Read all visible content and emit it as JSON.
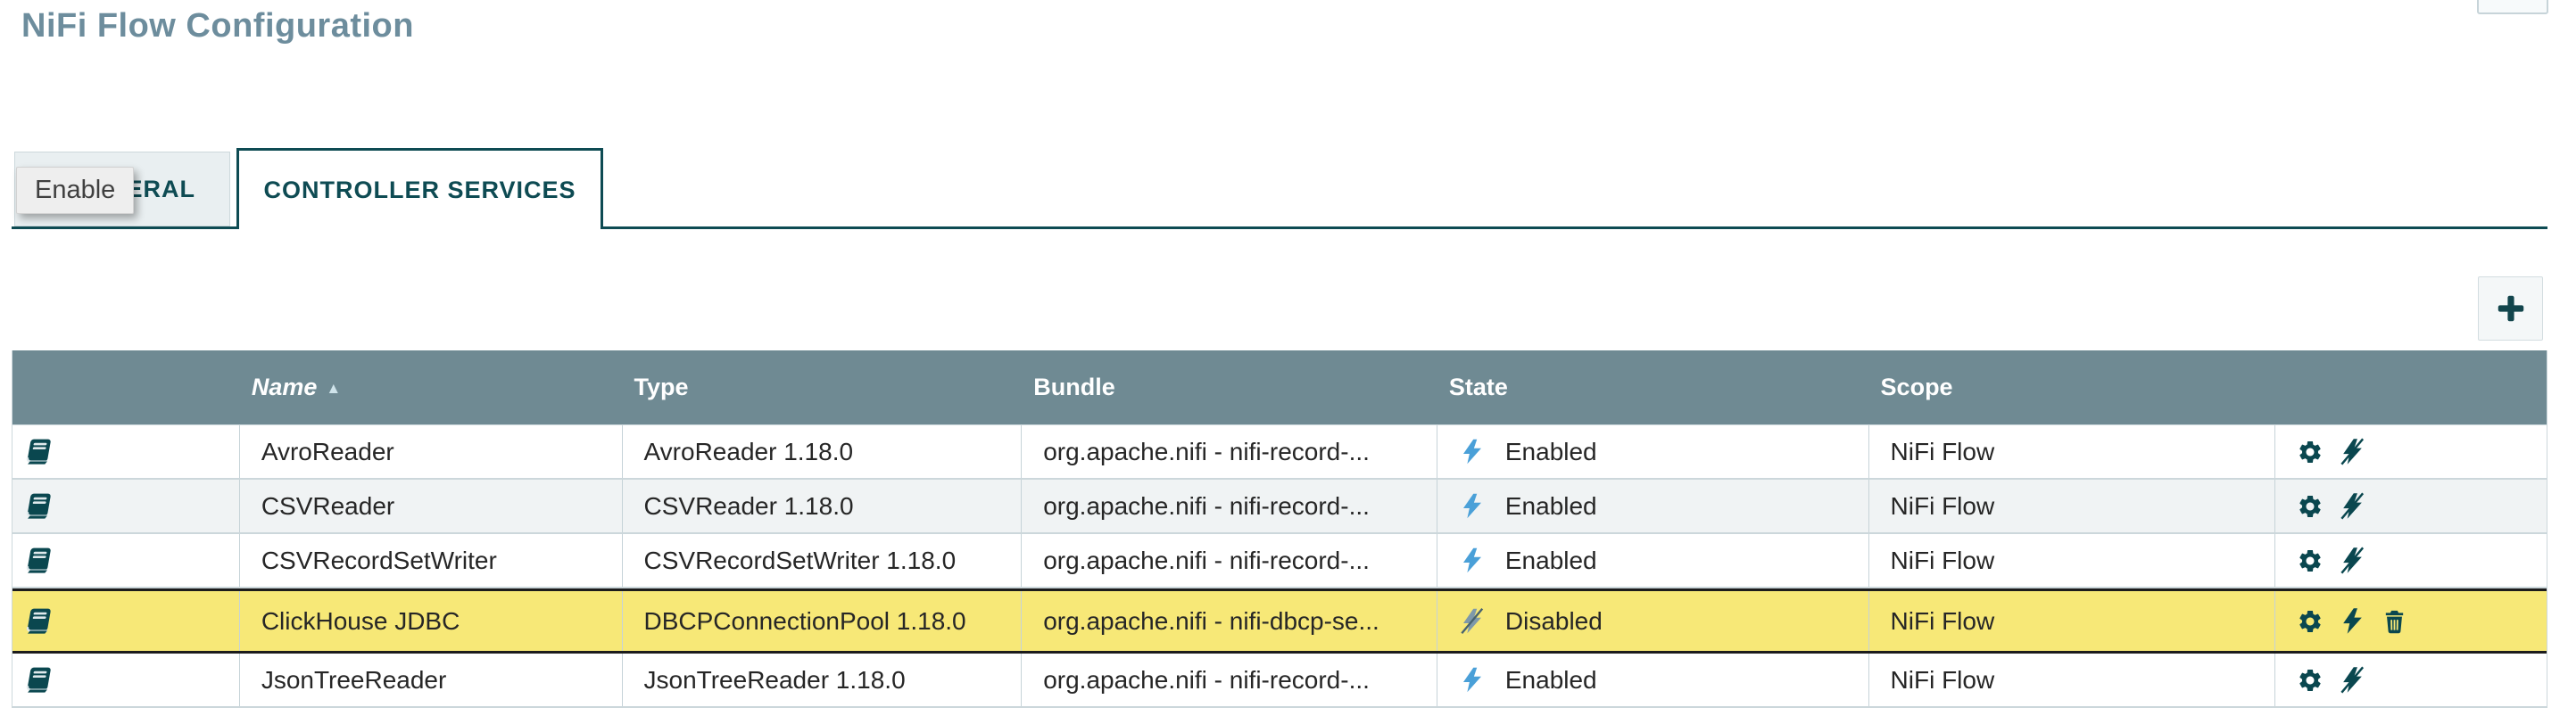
{
  "page": {
    "title": "NiFi Flow Configuration"
  },
  "tabs": [
    {
      "label": "GENERAL",
      "active": false
    },
    {
      "label": "CONTROLLER SERVICES",
      "active": true
    }
  ],
  "tooltip": {
    "label": "Enable"
  },
  "toolbar": {
    "add_button_icon": "plus-icon"
  },
  "table": {
    "columns": [
      "Name",
      "Type",
      "Bundle",
      "State",
      "Scope"
    ],
    "sort": {
      "column": "Name",
      "direction": "ascending",
      "icon": "caret-up-icon"
    },
    "rows": [
      {
        "name": "AvroReader",
        "type": "AvroReader 1.18.0",
        "bundle": "org.apache.nifi - nifi-record-...",
        "state": "Enabled",
        "scope": "NiFi Flow",
        "highlighted": false,
        "actions": [
          "configure",
          "disable"
        ]
      },
      {
        "name": "CSVReader",
        "type": "CSVReader 1.18.0",
        "bundle": "org.apache.nifi - nifi-record-...",
        "state": "Enabled",
        "scope": "NiFi Flow",
        "highlighted": false,
        "actions": [
          "configure",
          "disable"
        ]
      },
      {
        "name": "CSVRecordSetWriter",
        "type": "CSVRecordSetWriter 1.18.0",
        "bundle": "org.apache.nifi - nifi-record-...",
        "state": "Enabled",
        "scope": "NiFi Flow",
        "highlighted": false,
        "actions": [
          "configure",
          "disable"
        ]
      },
      {
        "name": "ClickHouse JDBC",
        "type": "DBCPConnectionPool 1.18.0",
        "bundle": "org.apache.nifi - nifi-dbcp-se...",
        "state": "Disabled",
        "scope": "NiFi Flow",
        "highlighted": true,
        "actions": [
          "configure",
          "enable",
          "delete"
        ]
      },
      {
        "name": "JsonTreeReader",
        "type": "JsonTreeReader 1.18.0",
        "bundle": "org.apache.nifi - nifi-record-...",
        "state": "Enabled",
        "scope": "NiFi Flow",
        "highlighted": false,
        "actions": [
          "configure",
          "disable"
        ]
      }
    ]
  },
  "icons": {
    "docs": "book-icon",
    "state_enabled": "bolt-icon",
    "state_disabled": "bolt-slash-icon",
    "configure": "gear-icon",
    "disable": "bolt-slash-icon",
    "enable": "bolt-icon",
    "delete": "trash-icon",
    "add": "plus-icon",
    "sort_ascending": "caret-up-icon"
  },
  "colors": {
    "accent_teal": "#0e4b53",
    "icon_teal": "#0a474f",
    "header_bg": "#6f8a93",
    "title_text": "#6d8d9d",
    "highlight_row": "#f7e877",
    "highlight_border": "#1c1c1c",
    "alt_row": "#f0f3f4",
    "enabled_bolt_blue": "#4aa0d8",
    "disabled_bolt_slate": "#7e99aa",
    "row_divider": "#ccd7db"
  }
}
